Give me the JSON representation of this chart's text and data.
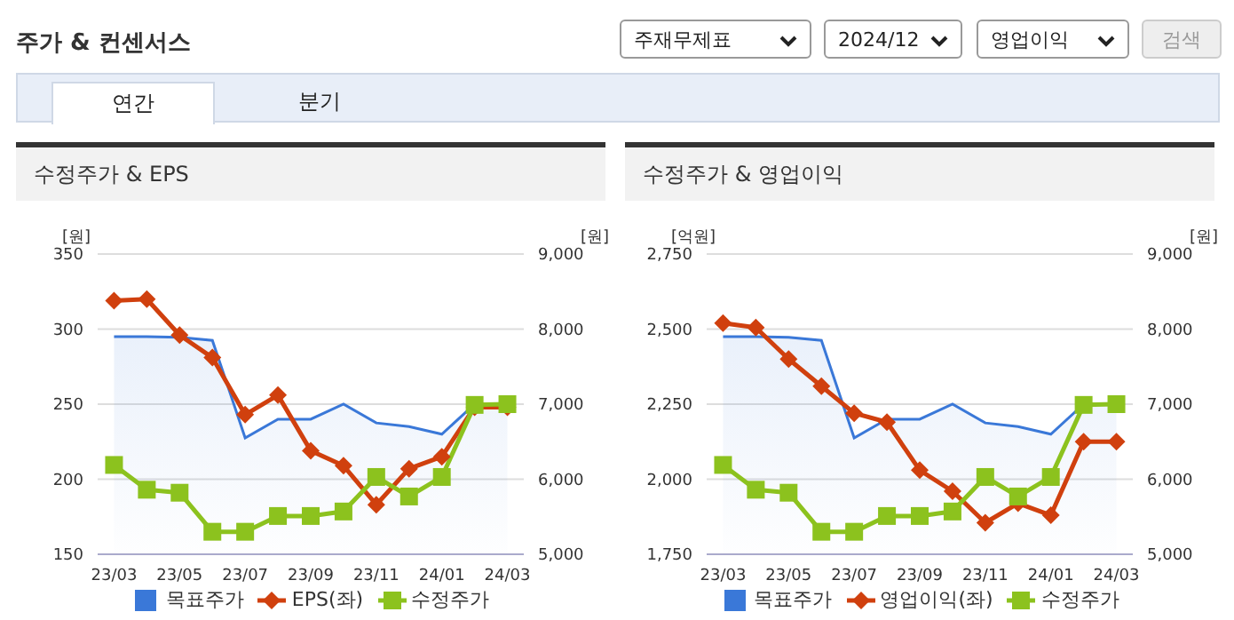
{
  "chart_data": [
    {
      "type": "line",
      "title": "수정주가 & EPS",
      "annotations": [
        "주가 & 컨센서스",
        "주재무제표",
        "2024/12",
        "영업이익",
        "검색",
        "연간",
        "분기"
      ],
      "ylabel": "[원]",
      "y2label": "[원]",
      "categories": [
        "23/03",
        null,
        "23/05",
        null,
        "23/07",
        null,
        "23/09",
        null,
        "23/11",
        null,
        "24/01",
        null,
        "24/03"
      ],
      "series": [
        {
          "name": "목표주가",
          "type": "area",
          "axis": "y2",
          "color": "#3a78d8",
          "marker": "none",
          "values": [
            7900,
            7900,
            7890,
            7850,
            6550,
            6800,
            6800,
            7000,
            6750,
            6700,
            6600,
            7000,
            7000
          ]
        },
        {
          "name": "EPS(좌)",
          "color": "#d0400e",
          "marker": "diamond",
          "values": [
            319,
            320,
            296,
            281,
            243,
            256,
            219,
            209,
            183,
            207,
            215,
            248,
            248
          ]
        },
        {
          "name": "수정주가",
          "axis": "y2",
          "color": "#8cc21e",
          "marker": "square",
          "values": [
            6190,
            5860,
            5820,
            5300,
            5300,
            5510,
            5510,
            5570,
            6030,
            5770,
            6030,
            6990,
            7000
          ]
        }
      ],
      "ylim": [
        150,
        350
      ],
      "yticks": [
        150,
        200,
        250,
        300,
        350
      ],
      "y2lim": [
        5000,
        9000
      ],
      "y2ticks": [
        {
          "value": 5000,
          "label": "5,000"
        },
        {
          "value": 6000,
          "label": "6,000"
        },
        {
          "value": 7000,
          "label": "7,000"
        },
        {
          "value": 8000,
          "label": "8,000"
        },
        {
          "value": 9000,
          "label": "9,000"
        }
      ],
      "grid": "y",
      "legend": "bottom"
    },
    {
      "type": "line",
      "title": "수정주가 & 영업이익",
      "ylabel": "[억원]",
      "y2label": "[원]",
      "categories": [
        "23/03",
        null,
        "23/05",
        null,
        "23/07",
        null,
        "23/09",
        null,
        "23/11",
        null,
        "24/01",
        null,
        "24/03"
      ],
      "series": [
        {
          "name": "목표주가",
          "type": "area",
          "axis": "y2",
          "color": "#3a78d8",
          "marker": "none",
          "values": [
            7900,
            7900,
            7890,
            7850,
            6550,
            6800,
            6800,
            7000,
            6750,
            6700,
            6600,
            7000,
            7000
          ]
        },
        {
          "name": "영업이익(좌)",
          "color": "#d0400e",
          "marker": "diamond",
          "values": [
            2520,
            2505,
            2400,
            2310,
            2220,
            2190,
            2030,
            1960,
            1855,
            1920,
            1880,
            2125,
            2125
          ]
        },
        {
          "name": "수정주가",
          "axis": "y2",
          "color": "#8cc21e",
          "marker": "square",
          "values": [
            6190,
            5860,
            5820,
            5300,
            5300,
            5510,
            5510,
            5570,
            6030,
            5770,
            6030,
            6990,
            7000
          ]
        }
      ],
      "ylim": [
        1750,
        2750
      ],
      "yticks": [
        {
          "value": 1750,
          "label": "1,750"
        },
        {
          "value": 2000,
          "label": "2,000"
        },
        {
          "value": 2250,
          "label": "2,250"
        },
        {
          "value": 2500,
          "label": "2,500"
        },
        {
          "value": 2750,
          "label": "2,750"
        }
      ],
      "y2lim": [
        5000,
        9000
      ],
      "y2ticks": [
        {
          "value": 5000,
          "label": "5,000"
        },
        {
          "value": 6000,
          "label": "6,000"
        },
        {
          "value": 7000,
          "label": "7,000"
        },
        {
          "value": 8000,
          "label": "8,000"
        },
        {
          "value": 9000,
          "label": "9,000"
        }
      ],
      "grid": "y",
      "legend": "bottom"
    }
  ]
}
